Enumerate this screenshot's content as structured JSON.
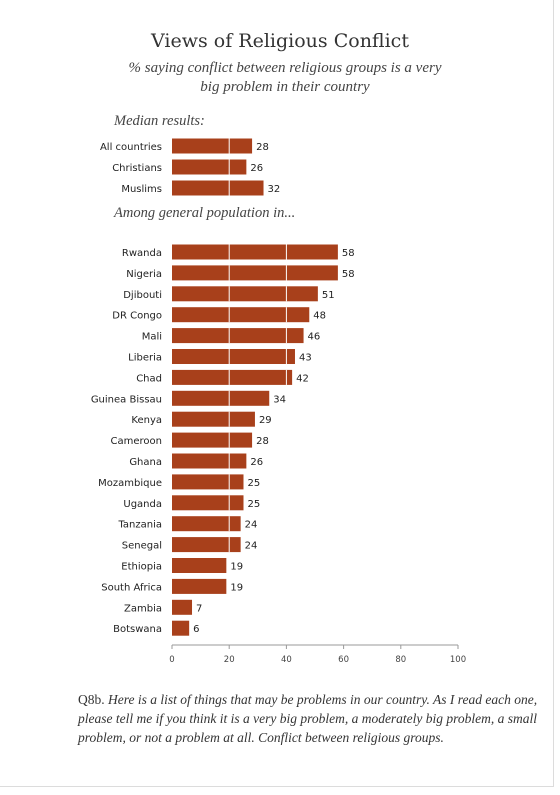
{
  "title": "Views of Religious Conflict",
  "subtitle": "% saying conflict between religious groups is a very big problem in their country",
  "footnote": {
    "question_id": "Q8b.",
    "text": "Here is a list of things that may be problems in our country. As I read each one, please tell me if you think it is a very big problem, a moderately big problem, a small problem, or not a problem at all. Conflict between religious groups."
  },
  "colors": {
    "bar": "#a8401b",
    "gridline": "#ffffff",
    "axis": "#999999"
  },
  "chart_data": {
    "type": "bar",
    "orientation": "horizontal",
    "xlim": [
      0,
      100
    ],
    "xticks": [
      0,
      20,
      40,
      60,
      80,
      100
    ],
    "grid": "vertical white gridlines over bars",
    "groups": [
      {
        "label": "Median results:",
        "categories": [
          "All countries",
          "Christians",
          "Muslims"
        ],
        "values": [
          28,
          26,
          32
        ]
      },
      {
        "label": "Among general population in...",
        "categories": [
          "Rwanda",
          "Nigeria",
          "Djibouti",
          "DR Congo",
          "Mali",
          "Liberia",
          "Chad",
          "Guinea Bissau",
          "Kenya",
          "Cameroon",
          "Ghana",
          "Mozambique",
          "Uganda",
          "Tanzania",
          "Senegal",
          "Ethiopia",
          "South Africa",
          "Zambia",
          "Botswana"
        ],
        "values": [
          58,
          58,
          51,
          48,
          46,
          43,
          42,
          34,
          29,
          28,
          26,
          25,
          25,
          24,
          24,
          19,
          19,
          7,
          6
        ]
      }
    ]
  }
}
